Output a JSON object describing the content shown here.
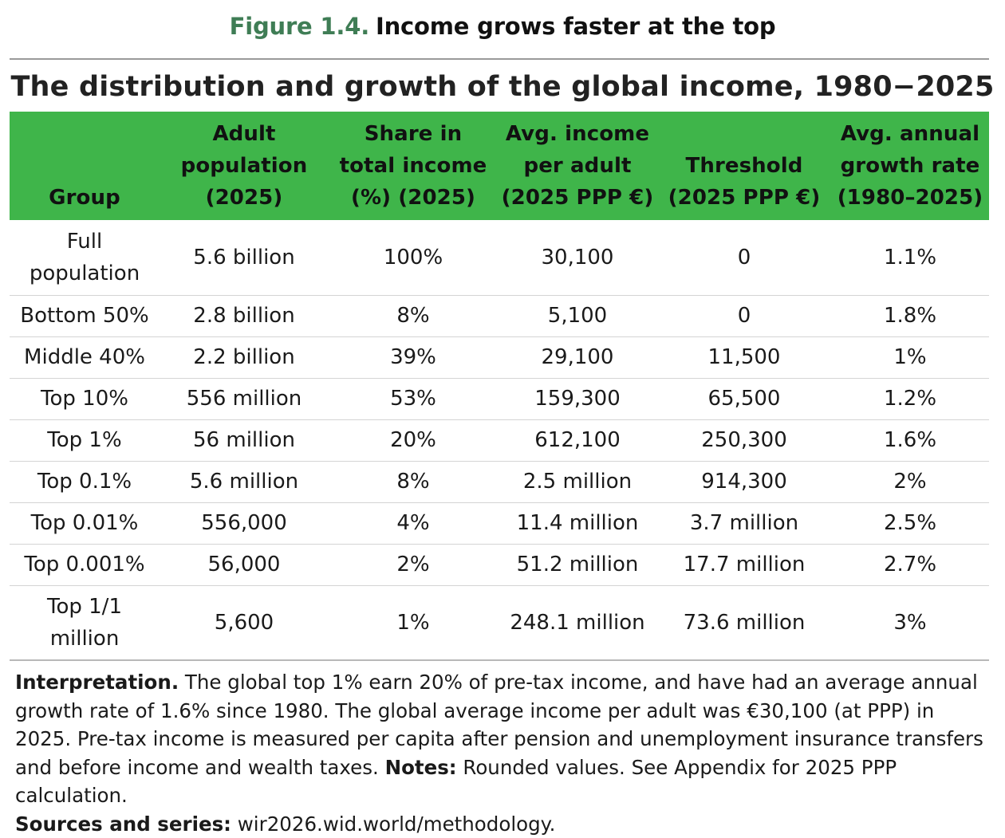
{
  "figure": {
    "number": "Figure 1.4.",
    "heading": "Income grows faster at the top"
  },
  "table": {
    "title": "The distribution and growth of the global income, 1980−2025",
    "headers": [
      "Group",
      "Adult\npopulation\n(2025)",
      "Share in\ntotal income\n(%) (2025)",
      "Avg. income\nper adult\n(2025 PPP €)",
      "Threshold\n(2025 PPP €)",
      "Avg. annual\ngrowth rate\n(1980–2025)"
    ],
    "rows": [
      [
        "Full\npopulation",
        "5.6 billion",
        "100%",
        "30,100",
        "0",
        "1.1%"
      ],
      [
        "Bottom 50%",
        "2.8 billion",
        "8%",
        "5,100",
        "0",
        "1.8%"
      ],
      [
        "Middle 40%",
        "2.2 billion",
        "39%",
        "29,100",
        "11,500",
        "1%"
      ],
      [
        "Top 10%",
        "556 million",
        "53%",
        "159,300",
        "65,500",
        "1.2%"
      ],
      [
        "Top 1%",
        "56 million",
        "20%",
        "612,100",
        "250,300",
        "1.6%"
      ],
      [
        "Top 0.1%",
        "5.6 million",
        "8%",
        "2.5 million",
        "914,300",
        "2%"
      ],
      [
        "Top 0.01%",
        "556,000",
        "4%",
        "11.4 million",
        "3.7 million",
        "2.5%"
      ],
      [
        "Top 0.001%",
        "56,000",
        "2%",
        "51.2 million",
        "17.7 million",
        "2.7%"
      ],
      [
        "Top 1/1\nmillion",
        "5,600",
        "1%",
        "248.1 million",
        "73.6 million",
        "3%"
      ]
    ]
  },
  "notes": {
    "interpretation_label": "Interpretation.",
    "interpretation_text": " The global top 1% earn 20% of pre-tax income, and have had an average annual growth rate of 1.6% since 1980. The global average income per adult was €30,100 (at PPP) in 2025. Pre-tax income is measured per capita after pension and unemployment insurance transfers and before income and wealth taxes. ",
    "notes_label": "Notes:",
    "notes_text": " Rounded values. See Appendix for 2025 PPP calculation.",
    "sources_label": "Sources and series:",
    "sources_text": " wir2026.wid.world/methodology."
  },
  "colors": {
    "header_green": "#3fb54a",
    "figure_number_green": "#3f7d55"
  }
}
